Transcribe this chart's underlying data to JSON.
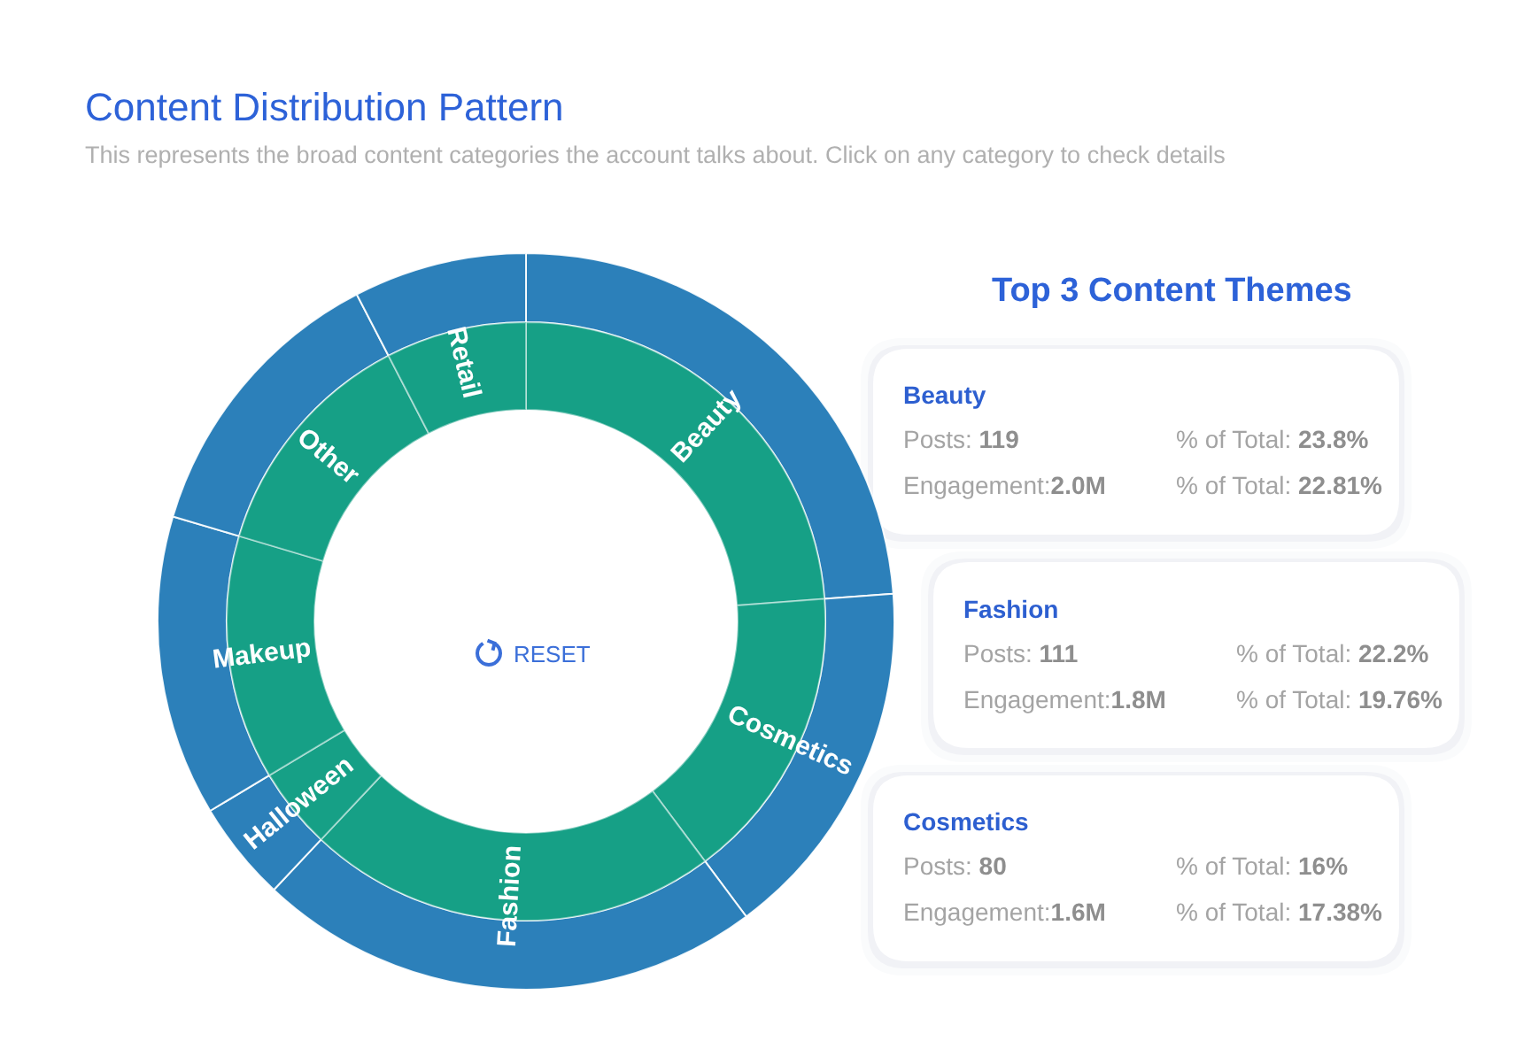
{
  "chart_data": [
    {
      "type": "donut",
      "title": "Content Distribution Pattern",
      "subtitle": "This represents the broad content categories the account talks about. Click on any category to check details",
      "categories": [
        "Beauty",
        "Cosmetics",
        "Fashion",
        "Halloween",
        "Makeup",
        "Other",
        "Retail"
      ],
      "series": [
        {
          "values": [
            23.8,
            16,
            22.2,
            4.4,
            13.2,
            12.8,
            7.6
          ],
          "color": "#2c80ba"
        },
        {
          "values": [
            23.8,
            16,
            22.2,
            4.4,
            13.2,
            12.8,
            7.6
          ],
          "color": "#16a086"
        }
      ],
      "annotations": [
        "RESET"
      ]
    },
    {
      "type": "other",
      "title": "Top 3 Content Themes",
      "annotations": [
        "Beauty",
        "Posts: 119",
        "% of Total: 23.8%",
        "Engagement:2.0M",
        "% of Total: 22.81%",
        "Fashion",
        "Posts: 111",
        "% of Total: 22.2%",
        "Engagement:1.8M",
        "% of Total: 19.76%",
        "Cosmetics",
        "Posts: 80",
        "% of Total: 16%",
        "Engagement:1.6M",
        "% of Total: 17.38%"
      ]
    }
  ]
}
